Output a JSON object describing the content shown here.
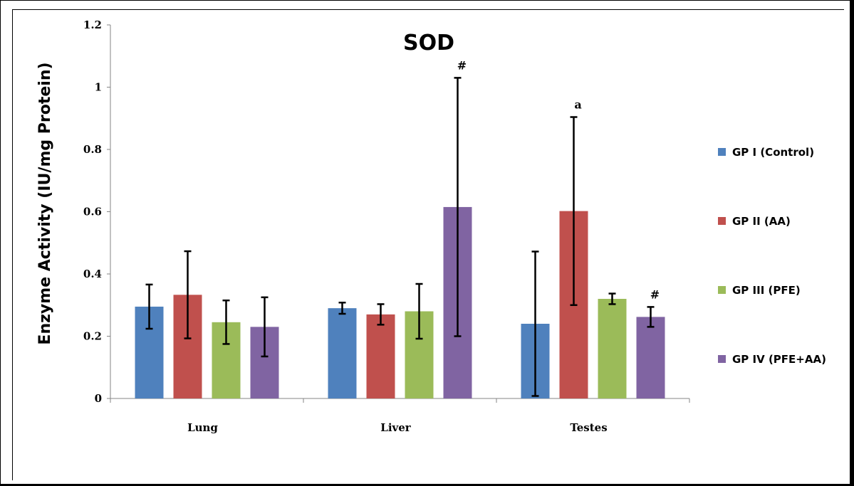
{
  "chart_data": {
    "type": "bar",
    "title": "SOD",
    "ylabel": "Enzyme Activity (IU/mg Protein)",
    "xlabel": "",
    "categories": [
      "Lung",
      "Liver",
      "Testes"
    ],
    "ylim": [
      0,
      1.2
    ],
    "yticks": [
      "0",
      "0.2",
      "0.4",
      "0.6",
      "0.8",
      "1",
      "1.2"
    ],
    "legend_position": "right",
    "grid": false,
    "series": [
      {
        "name": "GP I (Control)",
        "color": "#4F81BD",
        "values": [
          0.295,
          0.29,
          0.24
        ],
        "errors": [
          0.071,
          0.018,
          0.232
        ]
      },
      {
        "name": "GP II (AA)",
        "color": "#C0504D",
        "values": [
          0.333,
          0.27,
          0.602
        ],
        "errors": [
          0.14,
          0.033,
          0.302
        ]
      },
      {
        "name": "GP III (PFE)",
        "color": "#9BBB59",
        "values": [
          0.245,
          0.28,
          0.32
        ],
        "errors": [
          0.07,
          0.088,
          0.017
        ]
      },
      {
        "name": "GP IV (PFE+AA)",
        "color": "#8064A2",
        "values": [
          0.23,
          0.615,
          0.262
        ],
        "errors": [
          0.095,
          0.415,
          0.032
        ]
      }
    ],
    "annotations": [
      {
        "text": "#",
        "series": 3,
        "category": 1
      },
      {
        "text": "a",
        "series": 1,
        "category": 2
      },
      {
        "text": "#",
        "series": 3,
        "category": 2
      }
    ]
  }
}
